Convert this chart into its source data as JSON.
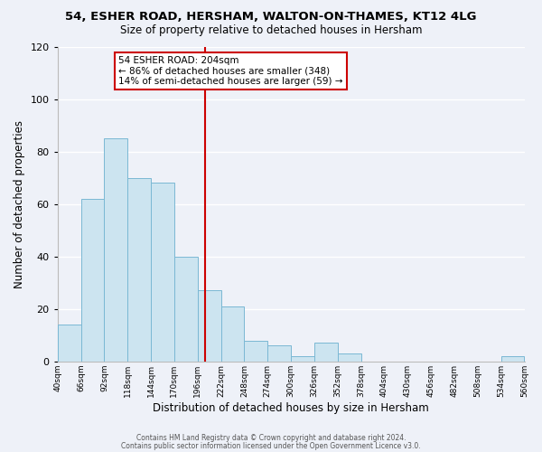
{
  "title1": "54, ESHER ROAD, HERSHAM, WALTON-ON-THAMES, KT12 4LG",
  "title2": "Size of property relative to detached houses in Hersham",
  "xlabel": "Distribution of detached houses by size in Hersham",
  "ylabel": "Number of detached properties",
  "bar_color": "#cce4f0",
  "bar_edge_color": "#7ab8d4",
  "bg_color": "#eef1f8",
  "grid_color": "#ffffff",
  "annotation_box_edge": "#cc0000",
  "vline_x": 204,
  "vline_color": "#cc0000",
  "bin_edges": [
    40,
    66,
    92,
    118,
    144,
    170,
    196,
    222,
    248,
    274,
    300,
    326,
    352,
    378,
    404,
    430,
    456,
    482,
    508,
    534,
    560
  ],
  "counts": [
    14,
    62,
    85,
    70,
    68,
    40,
    27,
    21,
    8,
    6,
    2,
    7,
    3,
    0,
    0,
    0,
    0,
    0,
    0,
    2
  ],
  "xlim": [
    40,
    560
  ],
  "ylim": [
    0,
    120
  ],
  "yticks": [
    0,
    20,
    40,
    60,
    80,
    100,
    120
  ],
  "xtick_labels": [
    "40sqm",
    "66sqm",
    "92sqm",
    "118sqm",
    "144sqm",
    "170sqm",
    "196sqm",
    "222sqm",
    "248sqm",
    "274sqm",
    "300sqm",
    "326sqm",
    "352sqm",
    "378sqm",
    "404sqm",
    "430sqm",
    "456sqm",
    "482sqm",
    "508sqm",
    "534sqm",
    "560sqm"
  ],
  "annotation_title": "54 ESHER ROAD: 204sqm",
  "annotation_line1": "← 86% of detached houses are smaller (348)",
  "annotation_line2": "14% of semi-detached houses are larger (59) →",
  "footer1": "Contains HM Land Registry data © Crown copyright and database right 2024.",
  "footer2": "Contains public sector information licensed under the Open Government Licence v3.0."
}
